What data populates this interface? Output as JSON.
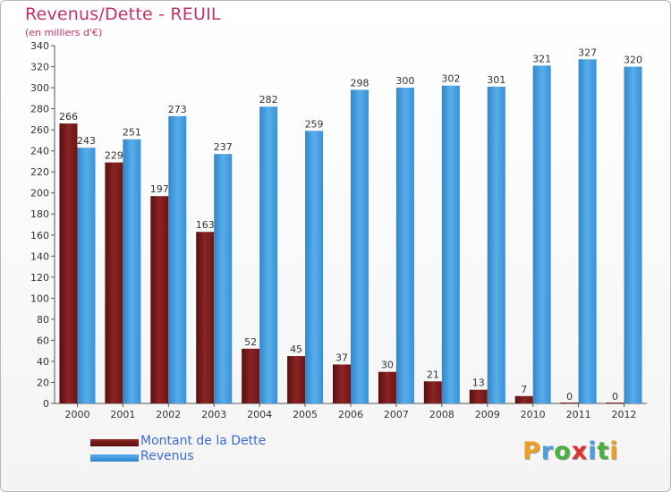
{
  "chart_data": {
    "type": "bar",
    "title": "Revenus/Dette - REUIL",
    "subtitle": "(en milliers d'€)",
    "categories": [
      "2000",
      "2001",
      "2002",
      "2003",
      "2004",
      "2005",
      "2006",
      "2007",
      "2008",
      "2009",
      "2010",
      "2011",
      "2012"
    ],
    "series": [
      {
        "name": "Montant de la Dette",
        "color": "#7a1a1a",
        "values": [
          266,
          229,
          197,
          163,
          52,
          45,
          37,
          30,
          21,
          13,
          7,
          0,
          0
        ]
      },
      {
        "name": "Revenus",
        "color": "#4a9fe0",
        "values": [
          243,
          251,
          273,
          237,
          282,
          259,
          298,
          300,
          302,
          301,
          321,
          327,
          320
        ]
      }
    ],
    "ylim": [
      0,
      340
    ],
    "yticks": [
      0,
      20,
      40,
      60,
      80,
      100,
      120,
      140,
      160,
      180,
      200,
      220,
      240,
      260,
      280,
      300,
      320,
      340
    ],
    "grid": false,
    "legend": "bottom-left"
  },
  "logo": {
    "letters": [
      "P",
      "r",
      "o",
      "x",
      "i",
      "t",
      "i"
    ],
    "colors": [
      "#f0a020",
      "#4aa0e0",
      "#4ab040",
      "#e03030",
      "#4aa0e0",
      "#4ab040",
      "#f0a020"
    ]
  }
}
